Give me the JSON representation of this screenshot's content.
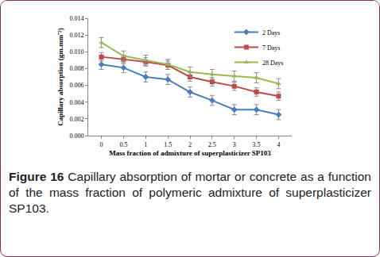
{
  "chart_data": {
    "type": "line",
    "x_label": "Mass fraction of admixture of superplasticizer SP103",
    "y_label": "Capillary absorption (gm.mm⁻²)",
    "categories": [
      "0",
      "0.5",
      "1",
      "1.5",
      "2",
      "2.5",
      "3",
      "3.5",
      "4"
    ],
    "series": [
      {
        "name": "2 Days",
        "color": "#4a7ebb",
        "marker": "diamond",
        "values": [
          0.0085,
          0.0081,
          0.007,
          0.0067,
          0.0052,
          0.0042,
          0.0031,
          0.0031,
          0.0025
        ],
        "error": [
          0.0006,
          0.0006,
          0.0006,
          0.0006,
          0.0006,
          0.0006,
          0.0006,
          0.0006,
          0.0006
        ]
      },
      {
        "name": "7 Days",
        "color": "#be4b48",
        "marker": "square",
        "values": [
          0.0094,
          0.0091,
          0.0088,
          0.0084,
          0.007,
          0.0064,
          0.0059,
          0.0052,
          0.0047
        ],
        "error": [
          0.0005,
          0.0005,
          0.0005,
          0.0005,
          0.0005,
          0.0005,
          0.0005,
          0.0005,
          0.0005
        ]
      },
      {
        "name": "28 Days",
        "color": "#98b954",
        "marker": "triangle-up",
        "values": [
          0.0111,
          0.0095,
          0.009,
          0.0085,
          0.0076,
          0.0073,
          0.0071,
          0.0069,
          0.0062
        ],
        "error": [
          0.0006,
          0.0006,
          0.0006,
          0.0006,
          0.0006,
          0.0006,
          0.0006,
          0.0006,
          0.0006
        ]
      }
    ],
    "ylim": [
      0,
      0.014
    ],
    "yticks": [
      {
        "value": 0,
        "label": "0.000"
      },
      {
        "value": 0.002,
        "label": "0.002"
      },
      {
        "value": 0.004,
        "label": "0.004"
      },
      {
        "value": 0.006,
        "label": "0.006"
      },
      {
        "value": 0.008,
        "label": "0.008"
      },
      {
        "value": 0.01,
        "label": "0.010"
      },
      {
        "value": 0.012,
        "label": "0.012"
      },
      {
        "value": 0.014,
        "label": "0.014"
      }
    ],
    "grid": false,
    "legend": "top right"
  },
  "caption": {
    "label": "Figure 16",
    "text": "Capillary absorption of mortar or concrete as a function of the mass fraction of polymeric admixture of superplasticizer SP103."
  }
}
